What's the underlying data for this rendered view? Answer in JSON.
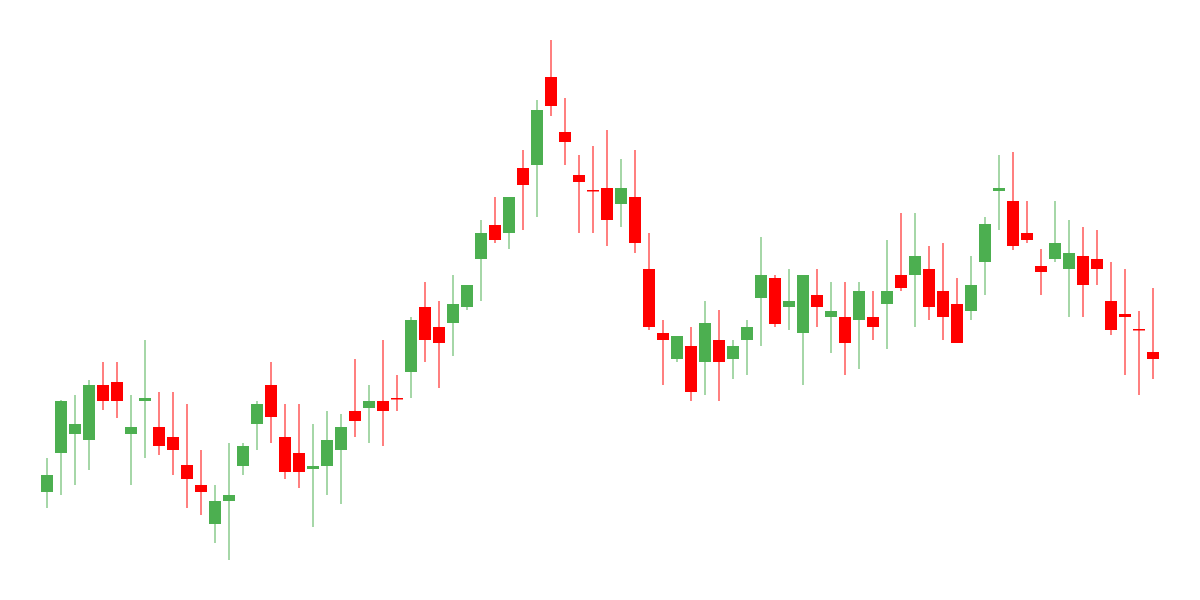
{
  "chart_data": {
    "type": "candlestick",
    "up_color": "#4caf50",
    "down_color": "#ff0000",
    "ylim": [
      0,
      600
    ],
    "open": [
      108,
      147,
      166,
      160,
      215,
      218,
      166,
      199,
      173,
      163,
      135,
      115,
      76,
      99,
      134,
      176,
      215,
      163,
      147,
      131,
      134,
      150,
      189,
      192,
      199,
      202,
      228,
      293,
      273,
      277,
      293,
      341,
      375,
      367,
      432,
      435,
      523,
      468,
      425,
      410,
      412,
      396,
      403,
      331,
      267,
      241,
      254,
      238,
      260,
      241,
      260,
      302,
      322,
      293,
      267,
      305,
      283,
      283,
      280,
      283,
      296,
      325,
      325,
      331,
      309,
      296,
      289,
      338,
      409,
      399,
      367,
      334,
      341,
      331,
      344,
      341,
      299,
      286,
      271,
      248
    ],
    "high": [
      142,
      200,
      205,
      220,
      238,
      238,
      205,
      260,
      208,
      208,
      196,
      150,
      115,
      157,
      157,
      199,
      238,
      196,
      196,
      176,
      189,
      186,
      241,
      215,
      260,
      225,
      283,
      318,
      299,
      325,
      315,
      380,
      403,
      403,
      450,
      500,
      560,
      502,
      445,
      454,
      470,
      441,
      450,
      367,
      280,
      264,
      273,
      299,
      290,
      260,
      280,
      363,
      325,
      331,
      325,
      331,
      318,
      318,
      318,
      309,
      360,
      387,
      387,
      354,
      357,
      322,
      344,
      383,
      445,
      448,
      399,
      351,
      399,
      380,
      373,
      370,
      338,
      331,
      289,
      312
    ],
    "low": [
      92,
      105,
      115,
      130,
      190,
      182,
      115,
      142,
      145,
      125,
      92,
      85,
      57,
      40,
      125,
      150,
      157,
      121,
      112,
      73,
      105,
      96,
      163,
      157,
      154,
      189,
      202,
      238,
      212,
      244,
      290,
      299,
      357,
      351,
      370,
      383,
      484,
      435,
      367,
      367,
      354,
      373,
      347,
      270,
      215,
      238,
      199,
      205,
      199,
      221,
      225,
      254,
      273,
      270,
      215,
      273,
      247,
      225,
      231,
      260,
      251,
      309,
      273,
      280,
      260,
      257,
      280,
      305,
      370,
      350,
      357,
      305,
      338,
      283,
      283,
      315,
      265,
      225,
      205,
      221
    ],
    "close": [
      125,
      199,
      176,
      215,
      199,
      199,
      173,
      202,
      154,
      150,
      121,
      108,
      99,
      105,
      154,
      196,
      183,
      128,
      128,
      134,
      160,
      173,
      179,
      199,
      189,
      201,
      280,
      260,
      257,
      296,
      315,
      367,
      360,
      403,
      415,
      490,
      494,
      458,
      418,
      409,
      380,
      412,
      357,
      273,
      260,
      264,
      208,
      277,
      238,
      254,
      273,
      325,
      276,
      299,
      325,
      293,
      289,
      257,
      309,
      273,
      309,
      312,
      344,
      293,
      283,
      257,
      315,
      376,
      412,
      354,
      360,
      328,
      357,
      347,
      315,
      331,
      270,
      283,
      270,
      241
    ]
  }
}
